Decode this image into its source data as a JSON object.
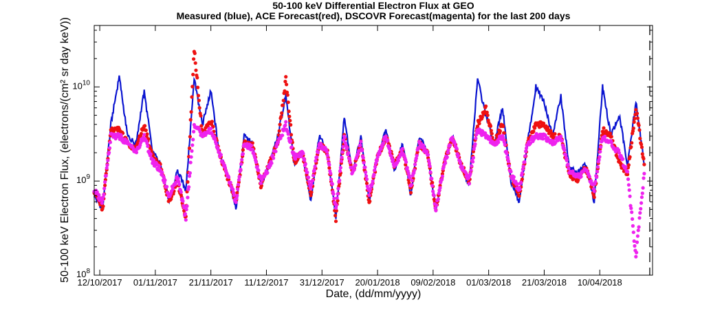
{
  "chart_data": {
    "type": "line",
    "title": "50-100 keV Differential Electron Flux at GEO",
    "subtitle": "Measured (blue), ACE Forecast(red), DSCOVR Forecast(magenta) for the last 200 days",
    "xlabel": "Date, (dd/mm/yyyy)",
    "ylabel": "50-100 keV Electron Flux, (electrons/(cm² sr day keV))",
    "y_scale": "log",
    "ylim": [
      100000000.0,
      45000000000.0
    ],
    "xlim": [
      "2017-10-10",
      "2018-04-29"
    ],
    "x_tick_labels": [
      "12/10/2017",
      "01/11/2017",
      "21/11/2017",
      "11/12/2017",
      "31/12/2017",
      "20/01/2018",
      "09/02/2018",
      "01/03/2018",
      "21/03/2018",
      "10/04/2018"
    ],
    "y_tick_labels": [
      "10^8",
      "10^9",
      "10^10"
    ],
    "grid": false,
    "legend": "none",
    "vertical_marker": {
      "date": "2018-04-28",
      "style": "dashed"
    },
    "colors": {
      "measured": "#0a14d0",
      "ace": "#ee1111",
      "dscovr": "#ee22ee"
    },
    "series": [
      {
        "key": "measured",
        "style": "line",
        "x": [
          "2017-10-10",
          "2017-10-13",
          "2017-10-16",
          "2017-10-19",
          "2017-10-22",
          "2017-10-25",
          "2017-10-28",
          "2017-10-31",
          "2017-11-03",
          "2017-11-06",
          "2017-11-09",
          "2017-11-12",
          "2017-11-15",
          "2017-11-18",
          "2017-11-21",
          "2017-11-24",
          "2017-11-27",
          "2017-11-30",
          "2017-12-03",
          "2017-12-06",
          "2017-12-09",
          "2017-12-12",
          "2017-12-15",
          "2017-12-18",
          "2017-12-21",
          "2017-12-24",
          "2017-12-27",
          "2017-12-30",
          "2018-01-02",
          "2018-01-05",
          "2018-01-08",
          "2018-01-11",
          "2018-01-14",
          "2018-01-17",
          "2018-01-20",
          "2018-01-23",
          "2018-01-26",
          "2018-01-29",
          "2018-02-01",
          "2018-02-04",
          "2018-02-07",
          "2018-02-10",
          "2018-02-13",
          "2018-02-16",
          "2018-02-19",
          "2018-02-22",
          "2018-02-25",
          "2018-02-28",
          "2018-03-03",
          "2018-03-06",
          "2018-03-09",
          "2018-03-12",
          "2018-03-15",
          "2018-03-18",
          "2018-03-21",
          "2018-03-24",
          "2018-03-27",
          "2018-03-30",
          "2018-04-02",
          "2018-04-05",
          "2018-04-08",
          "2018-04-11",
          "2018-04-14",
          "2018-04-17",
          "2018-04-20",
          "2018-04-23",
          "2018-04-26"
        ],
        "y": [
          700000000.0,
          500000000.0,
          4000000000.0,
          13000000000.0,
          3000000000.0,
          2500000000.0,
          9000000000.0,
          2000000000.0,
          1500000000.0,
          600000000.0,
          1300000000.0,
          800000000.0,
          12000000000.0,
          4000000000.0,
          9000000000.0,
          2000000000.0,
          1200000000.0,
          500000000.0,
          3000000000.0,
          2500000000.0,
          900000000.0,
          1500000000.0,
          3000000000.0,
          8000000000.0,
          1500000000.0,
          2000000000.0,
          600000000.0,
          3000000000.0,
          2000000000.0,
          400000000.0,
          5000000000.0,
          1200000000.0,
          3000000000.0,
          600000000.0,
          1800000000.0,
          3500000000.0,
          1300000000.0,
          2500000000.0,
          700000000.0,
          3000000000.0,
          2000000000.0,
          500000000.0,
          1500000000.0,
          3000000000.0,
          1500000000.0,
          900000000.0,
          12000000000.0,
          5000000000.0,
          2500000000.0,
          6000000000.0,
          1000000000.0,
          600000000.0,
          2500000000.0,
          10000000000.0,
          7000000000.0,
          3000000000.0,
          8000000000.0,
          1400000000.0,
          1200000000.0,
          1500000000.0,
          600000000.0,
          10000000000.0,
          3000000000.0,
          5000000000.0,
          1500000000.0,
          7000000000.0,
          1500000000.0
        ]
      },
      {
        "key": "ace",
        "style": "dots",
        "x": [
          "2017-10-10",
          "2017-10-13",
          "2017-10-16",
          "2017-10-19",
          "2017-10-22",
          "2017-10-25",
          "2017-10-28",
          "2017-10-31",
          "2017-11-03",
          "2017-11-06",
          "2017-11-09",
          "2017-11-12",
          "2017-11-15",
          "2017-11-18",
          "2017-11-21",
          "2017-11-24",
          "2017-11-27",
          "2017-11-30",
          "2017-12-03",
          "2017-12-06",
          "2017-12-09",
          "2017-12-12",
          "2017-12-15",
          "2017-12-18",
          "2017-12-21",
          "2017-12-24",
          "2017-12-27",
          "2017-12-30",
          "2018-01-02",
          "2018-01-05",
          "2018-01-08",
          "2018-01-11",
          "2018-01-14",
          "2018-01-17",
          "2018-01-20",
          "2018-01-23",
          "2018-01-26",
          "2018-01-29",
          "2018-02-01",
          "2018-02-04",
          "2018-02-07",
          "2018-02-10",
          "2018-02-13",
          "2018-02-16",
          "2018-02-19",
          "2018-02-22",
          "2018-02-25",
          "2018-02-28",
          "2018-03-03",
          "2018-03-06",
          "2018-03-09",
          "2018-03-12",
          "2018-03-15",
          "2018-03-18",
          "2018-03-21",
          "2018-03-24",
          "2018-03-27",
          "2018-03-30",
          "2018-04-02",
          "2018-04-05",
          "2018-04-08",
          "2018-04-11",
          "2018-04-14",
          "2018-04-17",
          "2018-04-20",
          "2018-04-23",
          "2018-04-26"
        ],
        "y": [
          800000000.0,
          500000000.0,
          3500000000.0,
          3500000000.0,
          2500000000.0,
          2200000000.0,
          4000000000.0,
          1800000000.0,
          1400000000.0,
          600000000.0,
          1000000000.0,
          400000000.0,
          25000000000.0,
          3000000000.0,
          4500000000.0,
          2000000000.0,
          1100000000.0,
          600000000.0,
          2500000000.0,
          2500000000.0,
          900000000.0,
          1500000000.0,
          2500000000.0,
          12000000000.0,
          1600000000.0,
          2000000000.0,
          700000000.0,
          2500000000.0,
          2000000000.0,
          400000000.0,
          3000000000.0,
          1200000000.0,
          2500000000.0,
          600000000.0,
          1800000000.0,
          3000000000.0,
          1500000000.0,
          2200000000.0,
          800000000.0,
          2500000000.0,
          2000000000.0,
          500000000.0,
          1500000000.0,
          3000000000.0,
          1500000000.0,
          1000000000.0,
          4000000000.0,
          6000000000.0,
          2500000000.0,
          4000000000.0,
          1100000000.0,
          700000000.0,
          2500000000.0,
          4000000000.0,
          4000000000.0,
          3000000000.0,
          3000000000.0,
          1200000000.0,
          1000000000.0,
          1400000000.0,
          700000000.0,
          3500000000.0,
          3000000000.0,
          1600000000.0,
          1200000000.0,
          6000000000.0,
          1500000000.0
        ]
      },
      {
        "key": "dscovr",
        "style": "dots",
        "x": [
          "2017-10-10",
          "2017-10-13",
          "2017-10-16",
          "2017-10-19",
          "2017-10-22",
          "2017-10-25",
          "2017-10-28",
          "2017-10-31",
          "2017-11-03",
          "2017-11-06",
          "2017-11-09",
          "2017-11-12",
          "2017-11-15",
          "2017-11-18",
          "2017-11-21",
          "2017-11-24",
          "2017-11-27",
          "2017-11-30",
          "2017-12-03",
          "2017-12-06",
          "2017-12-09",
          "2017-12-12",
          "2017-12-15",
          "2017-12-18",
          "2017-12-21",
          "2017-12-24",
          "2017-12-27",
          "2017-12-30",
          "2018-01-02",
          "2018-01-05",
          "2018-01-08",
          "2018-01-11",
          "2018-01-14",
          "2018-01-17",
          "2018-01-20",
          "2018-01-23",
          "2018-01-26",
          "2018-01-29",
          "2018-02-01",
          "2018-02-04",
          "2018-02-07",
          "2018-02-10",
          "2018-02-13",
          "2018-02-16",
          "2018-02-19",
          "2018-02-22",
          "2018-02-25",
          "2018-02-28",
          "2018-03-03",
          "2018-03-06",
          "2018-03-09",
          "2018-03-12",
          "2018-03-15",
          "2018-03-18",
          "2018-03-21",
          "2018-03-24",
          "2018-03-27",
          "2018-03-30",
          "2018-04-02",
          "2018-04-05",
          "2018-04-08",
          "2018-04-11",
          "2018-04-14",
          "2018-04-17",
          "2018-04-20",
          "2018-04-23",
          "2018-04-26"
        ],
        "y": [
          800000000.0,
          600000000.0,
          3000000000.0,
          3000000000.0,
          2500000000.0,
          2000000000.0,
          3000000000.0,
          1600000000.0,
          1300000000.0,
          700000000.0,
          1100000000.0,
          400000000.0,
          4000000000.0,
          3000000000.0,
          3500000000.0,
          2000000000.0,
          1200000000.0,
          600000000.0,
          2500000000.0,
          2200000000.0,
          1000000000.0,
          1400000000.0,
          2500000000.0,
          4000000000.0,
          1800000000.0,
          2000000000.0,
          800000000.0,
          2500000000.0,
          2000000000.0,
          500000000.0,
          3000000000.0,
          1200000000.0,
          2500000000.0,
          700000000.0,
          1800000000.0,
          3000000000.0,
          1400000000.0,
          2200000000.0,
          900000000.0,
          2500000000.0,
          2000000000.0,
          500000000.0,
          1500000000.0,
          3000000000.0,
          1500000000.0,
          1000000000.0,
          3500000000.0,
          3000000000.0,
          2500000000.0,
          3000000000.0,
          1200000000.0,
          800000000.0,
          2500000000.0,
          3000000000.0,
          3000000000.0,
          2500000000.0,
          3000000000.0,
          1300000000.0,
          1100000000.0,
          1300000000.0,
          800000000.0,
          3000000000.0,
          2500000000.0,
          2000000000.0,
          1200000000.0,
          160000000.0,
          1200000000.0
        ]
      }
    ]
  }
}
